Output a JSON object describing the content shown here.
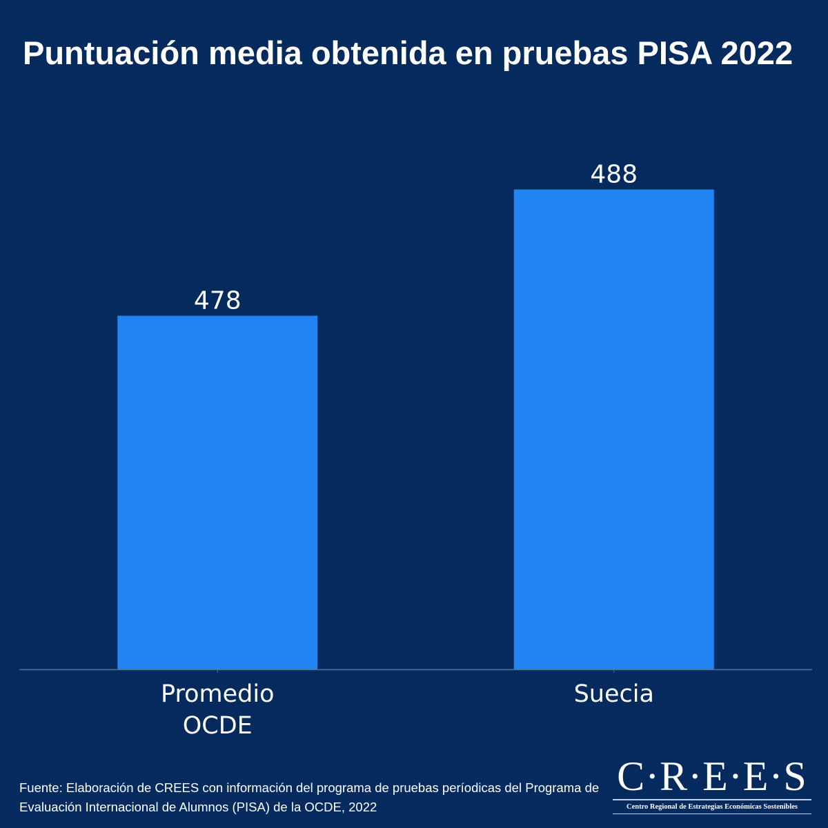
{
  "chart_data": {
    "type": "bar",
    "title": "Puntuación media obtenida en pruebas PISA 2022",
    "categories": [
      "Promedio OCDE",
      "Suecia"
    ],
    "category_lines": [
      [
        "Promedio",
        "OCDE"
      ],
      [
        "Suecia"
      ]
    ],
    "values": [
      478,
      488
    ],
    "data_labels": [
      "478",
      "488"
    ],
    "xlabel": "",
    "ylabel": "",
    "ylim": [
      450,
      492
    ],
    "grid": false,
    "y_axis_shown": false,
    "colors": {
      "bar": "#2284f2",
      "background": "#052a5e",
      "axis": "#5d7191",
      "text": "#ffffff"
    }
  },
  "source": "Fuente: Elaboración de CREES con información del programa de pruebas períodicas del Programa de Evaluación Internacional de Alumnos (PISA) de la OCDE, 2022",
  "logo": {
    "name": "C·R·E·E·S",
    "subtitle": "Centro Regional de Estrategias Económicas Sostenibles"
  }
}
